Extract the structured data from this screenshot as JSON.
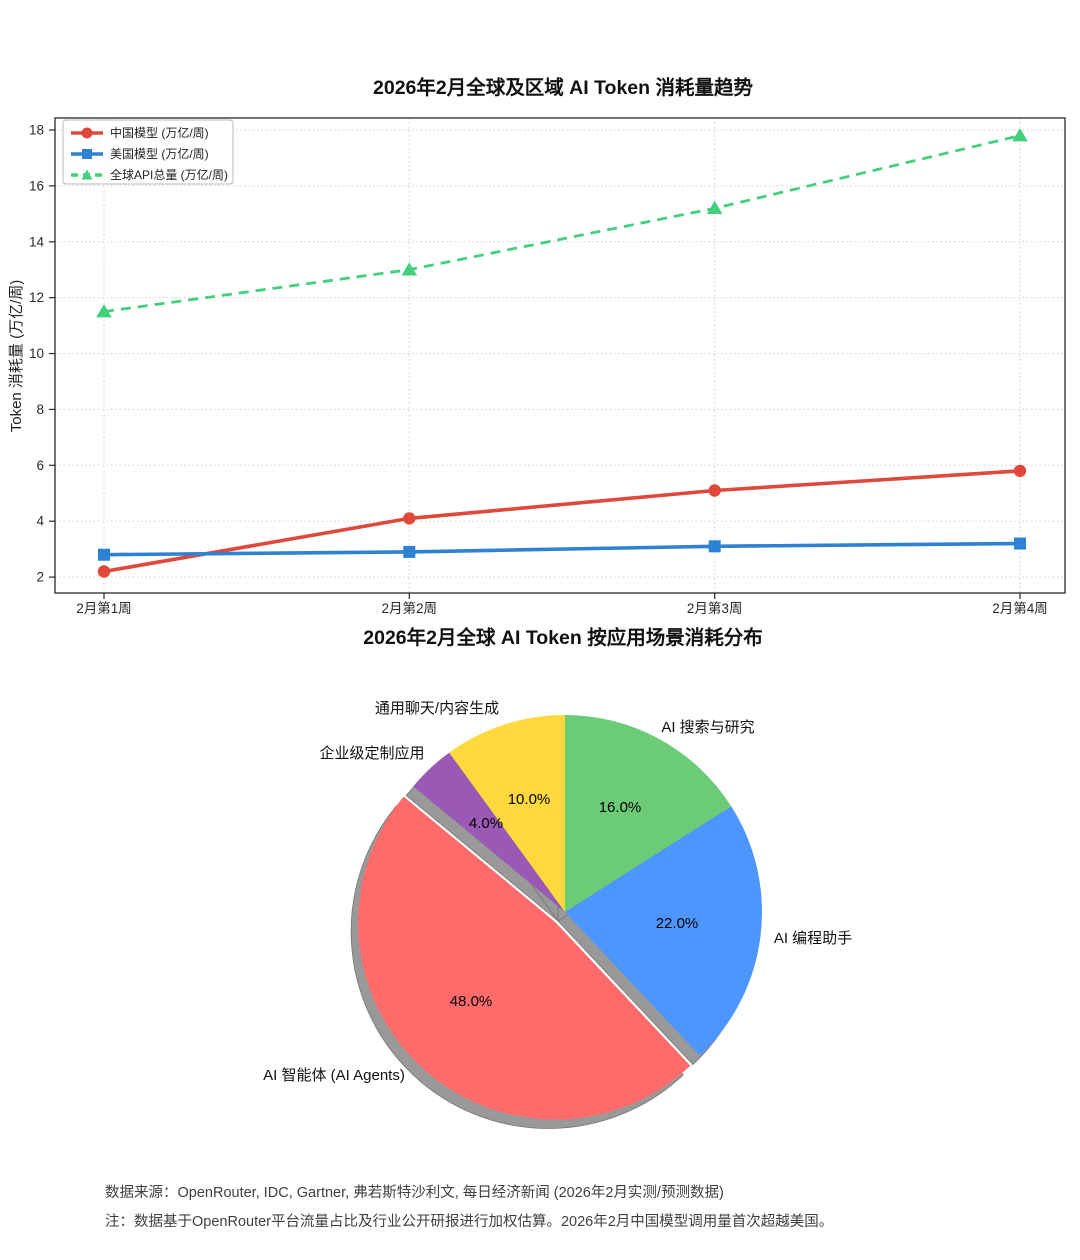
{
  "page": {
    "background": "#ffffff"
  },
  "chart_data": [
    {
      "type": "line",
      "title": "2026年2月全球及区域 AI Token 消耗量趋势",
      "ylabel": "Token 消耗量 (万亿/周)",
      "xlabel": "",
      "x_categories": [
        "2月第1周",
        "2月第2周",
        "2月第3周",
        "2月第4周"
      ],
      "yticks": [
        2,
        4,
        6,
        8,
        10,
        12,
        14,
        16,
        18
      ],
      "ylim": [
        1.43,
        18.43
      ],
      "grid": "dotted-both-axes",
      "legend_position": "upper-left",
      "series": [
        {
          "name": "中国模型 (万亿/周)",
          "color": "#e0483c",
          "marker": "circle",
          "line_style": "solid",
          "values": [
            2.2,
            4.1,
            5.1,
            5.8
          ]
        },
        {
          "name": "美国模型 (万亿/周)",
          "color": "#2e82d3",
          "marker": "square",
          "line_style": "solid",
          "values": [
            2.8,
            2.9,
            3.1,
            3.2
          ]
        },
        {
          "name": "全球API总量 (万亿/周)",
          "color": "#42d07c",
          "marker": "triangle",
          "line_style": "dashed",
          "values": [
            11.5,
            13.0,
            15.2,
            17.8
          ]
        }
      ]
    },
    {
      "type": "pie",
      "title": "2026年2月全球 AI Token 按应用场景消耗分布",
      "start_angle": 90,
      "direction": "clockwise",
      "shadow": true,
      "shadow_color": "#999999",
      "slices": [
        {
          "label": "AI 搜索与研究",
          "value": 16.0,
          "pct_label": "16.0%",
          "color": "#6BCB77",
          "exploded": false
        },
        {
          "label": "AI 编程助手",
          "value": 22.0,
          "pct_label": "22.0%",
          "color": "#4D96FF",
          "exploded": false
        },
        {
          "label": "AI 智能体 (AI Agents)",
          "value": 48.0,
          "pct_label": "48.0%",
          "color": "#FF6B6B",
          "exploded": true
        },
        {
          "label": "企业级定制应用",
          "value": 4.0,
          "pct_label": "4.0%",
          "color": "#9B59B6",
          "exploded": false
        },
        {
          "label": "通用聊天/内容生成",
          "value": 10.0,
          "pct_label": "10.0%",
          "color": "#FFD93D",
          "exploded": false
        }
      ]
    }
  ],
  "footer": {
    "source_line": "数据来源：OpenRouter, IDC, Gartner, 弗若斯特沙利文, 每日经济新闻 (2026年2月实测/预测数据)",
    "note_line": "注：数据基于OpenRouter平台流量占比及行业公开研报进行加权估算。2026年2月中国模型调用量首次超越美国。"
  }
}
